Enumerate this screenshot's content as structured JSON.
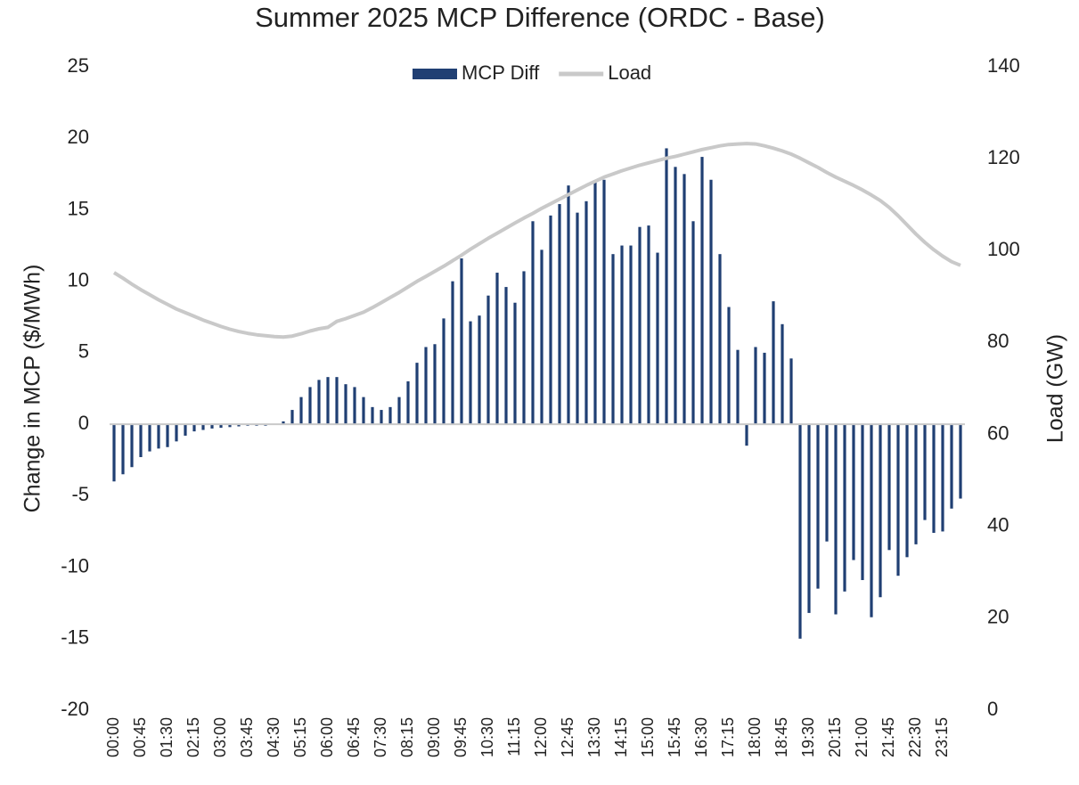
{
  "chart_data": {
    "type": "bar-line",
    "title": "Summer 2025 MCP Difference (ORDC - Base)",
    "y_label": "Change in MCP ($/MWh)",
    "y2_label": "Load (GW)",
    "legend": "top",
    "categories": [
      "00:00",
      null,
      null,
      "00:45",
      null,
      null,
      "01:30",
      null,
      null,
      "02:15",
      null,
      null,
      "03:00",
      null,
      null,
      "03:45",
      null,
      null,
      "04:30",
      null,
      null,
      "05:15",
      null,
      null,
      "06:00",
      null,
      null,
      "06:45",
      null,
      null,
      "07:30",
      null,
      null,
      "08:15",
      null,
      null,
      "09:00",
      null,
      null,
      "09:45",
      null,
      null,
      "10:30",
      null,
      null,
      "11:15",
      null,
      null,
      "12:00",
      null,
      null,
      "12:45",
      null,
      null,
      "13:30",
      null,
      null,
      "14:15",
      null,
      null,
      "15:00",
      null,
      null,
      "15:45",
      null,
      null,
      "16:30",
      null,
      null,
      "17:15",
      null,
      null,
      "18:00",
      null,
      null,
      "18:45",
      null,
      null,
      "19:30",
      null,
      null,
      "20:15",
      null,
      null,
      "21:00",
      null,
      null,
      "21:45",
      null,
      null,
      "22:30",
      null,
      null,
      "23:15",
      null,
      null
    ],
    "series": [
      {
        "name": "MCP Diff",
        "type": "bar",
        "color": "#203f73",
        "values": [
          -4.0,
          -3.5,
          -3.0,
          -2.3,
          -1.9,
          -1.7,
          -1.6,
          -1.2,
          -0.8,
          -0.5,
          -0.4,
          -0.3,
          -0.25,
          -0.2,
          -0.15,
          -0.1,
          -0.1,
          -0.1,
          -0.05,
          0.2,
          1.0,
          1.9,
          2.6,
          3.1,
          3.3,
          3.3,
          2.8,
          2.6,
          1.9,
          1.2,
          1.0,
          1.2,
          1.9,
          3.0,
          4.3,
          5.4,
          5.6,
          7.4,
          10.0,
          11.6,
          7.2,
          7.6,
          9.0,
          10.6,
          9.6,
          8.5,
          10.7,
          14.2,
          12.2,
          14.6,
          15.4,
          16.7,
          14.8,
          15.6,
          16.9,
          17.1,
          11.9,
          12.5,
          12.5,
          13.8,
          13.9,
          12.0,
          19.3,
          18.0,
          17.5,
          14.2,
          18.7,
          17.1,
          11.9,
          8.2,
          5.2,
          -1.5,
          5.4,
          5.0,
          8.6,
          7.0,
          4.6,
          -15.0,
          -13.2,
          -11.5,
          -8.2,
          -13.3,
          -11.7,
          -9.5,
          -10.9,
          -13.5,
          -12.1,
          -8.8,
          -10.6,
          -9.3,
          -8.4,
          -6.7,
          -7.6,
          -7.5,
          -5.9,
          -5.2
        ]
      },
      {
        "name": "Load",
        "type": "line",
        "axis": "y2",
        "color": "#c9c9c9",
        "values": [
          95.2,
          94.0,
          92.7,
          91.5,
          90.4,
          89.3,
          88.3,
          87.3,
          86.5,
          85.7,
          84.9,
          84.2,
          83.5,
          82.9,
          82.4,
          82.0,
          81.7,
          81.5,
          81.3,
          81.2,
          81.4,
          81.9,
          82.5,
          83.0,
          83.3,
          84.6,
          85.2,
          85.9,
          86.6,
          87.6,
          88.7,
          89.8,
          90.9,
          92.1,
          93.3,
          94.4,
          95.5,
          96.6,
          97.8,
          99.0,
          100.3,
          101.5,
          102.7,
          103.8,
          104.9,
          106.0,
          107.1,
          108.1,
          109.2,
          110.2,
          111.2,
          112.2,
          113.2,
          114.2,
          115.1,
          116.0,
          116.7,
          117.4,
          118.0,
          118.6,
          119.1,
          119.6,
          120.1,
          120.5,
          121.0,
          121.5,
          122.0,
          122.4,
          122.8,
          123.1,
          123.2,
          123.3,
          123.2,
          122.8,
          122.3,
          121.7,
          121.0,
          120.1,
          119.1,
          118.1,
          117.0,
          116.0,
          115.1,
          114.2,
          113.2,
          112.1,
          110.9,
          109.4,
          107.6,
          105.6,
          103.6,
          101.8,
          100.2,
          98.8,
          97.6,
          96.8
        ]
      }
    ],
    "ylim": [
      -20,
      25
    ],
    "yticks": [
      -20,
      -15,
      -10,
      -5,
      0,
      5,
      10,
      15,
      20,
      25
    ],
    "y2lim": [
      0,
      140
    ],
    "y2ticks": [
      0,
      20,
      40,
      60,
      80,
      100,
      120,
      140
    ],
    "grid": false
  }
}
